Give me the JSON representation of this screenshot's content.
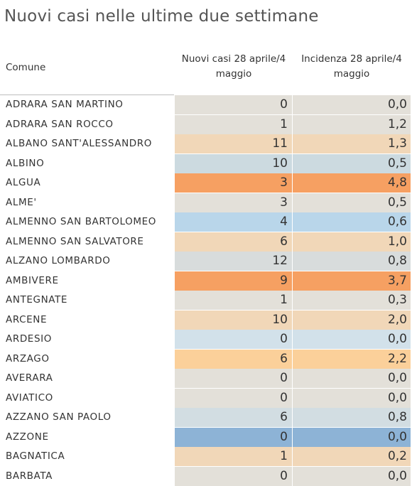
{
  "title": "Nuovi casi nelle ultime due settimane",
  "headers": {
    "comune": "Comune",
    "col1": "Nuovi casi 28 aprile/4 maggio",
    "col2": "Incidenza 28 aprile/4 maggio"
  },
  "rows": [
    {
      "comune": "ADRARA SAN MARTINO",
      "nuovi": "0",
      "incidenza": "0,0"
    },
    {
      "comune": "ADRARA SAN ROCCO",
      "nuovi": "1",
      "incidenza": "1,2"
    },
    {
      "comune": "ALBANO SANT'ALESSANDRO",
      "nuovi": "11",
      "incidenza": "1,3"
    },
    {
      "comune": "ALBINO",
      "nuovi": "10",
      "incidenza": "0,5"
    },
    {
      "comune": "ALGUA",
      "nuovi": "3",
      "incidenza": "4,8"
    },
    {
      "comune": "ALME'",
      "nuovi": "3",
      "incidenza": "0,5"
    },
    {
      "comune": "ALMENNO SAN BARTOLOMEO",
      "nuovi": "4",
      "incidenza": "0,6"
    },
    {
      "comune": "ALMENNO SAN SALVATORE",
      "nuovi": "6",
      "incidenza": "1,0"
    },
    {
      "comune": "ALZANO LOMBARDO",
      "nuovi": "12",
      "incidenza": "0,8"
    },
    {
      "comune": "AMBIVERE",
      "nuovi": "9",
      "incidenza": "3,7"
    },
    {
      "comune": "ANTEGNATE",
      "nuovi": "1",
      "incidenza": "0,3"
    },
    {
      "comune": "ARCENE",
      "nuovi": "10",
      "incidenza": "2,0"
    },
    {
      "comune": "ARDESIO",
      "nuovi": "0",
      "incidenza": "0,0"
    },
    {
      "comune": "ARZAGO",
      "nuovi": "6",
      "incidenza": "2,2"
    },
    {
      "comune": "AVERARA",
      "nuovi": "0",
      "incidenza": "0,0"
    },
    {
      "comune": "AVIATICO",
      "nuovi": "0",
      "incidenza": "0,0"
    },
    {
      "comune": "AZZANO SAN PAOLO",
      "nuovi": "6",
      "incidenza": "0,8"
    },
    {
      "comune": "AZZONE",
      "nuovi": "0",
      "incidenza": "0,0"
    },
    {
      "comune": "BAGNATICA",
      "nuovi": "1",
      "incidenza": "0,2"
    },
    {
      "comune": "BARBATA",
      "nuovi": "0",
      "incidenza": "0,0"
    }
  ],
  "row_colors": [
    "#e3e0d9",
    "#e3e0d9",
    "#f1d7b8",
    "#ccdae0",
    "#f6a062",
    "#e3e0d9",
    "#b9d6ea",
    "#f1d7b8",
    "#d8dcdc",
    "#f6a062",
    "#e3e0d9",
    "#f1d7b8",
    "#d2e1ea",
    "#fbd09a",
    "#e3e0d9",
    "#e3e0d9",
    "#d2dde2",
    "#8db3d6",
    "#f1d7b8",
    "#e3e0d9"
  ],
  "chart_data": {
    "type": "table",
    "title": "Nuovi casi nelle ultime due settimane",
    "columns": [
      "Comune",
      "Nuovi casi 28 aprile/4 maggio",
      "Incidenza 28 aprile/4 maggio"
    ],
    "categories": [
      "ADRARA SAN MARTINO",
      "ADRARA SAN ROCCO",
      "ALBANO SANT'ALESSANDRO",
      "ALBINO",
      "ALGUA",
      "ALME'",
      "ALMENNO SAN BARTOLOMEO",
      "ALMENNO SAN SALVATORE",
      "ALZANO LOMBARDO",
      "AMBIVERE",
      "ANTEGNATE",
      "ARCENE",
      "ARDESIO",
      "ARZAGO",
      "AVERARA",
      "AVIATICO",
      "AZZANO SAN PAOLO",
      "AZZONE",
      "BAGNATICA",
      "BARBATA"
    ],
    "series": [
      {
        "name": "Nuovi casi 28 aprile/4 maggio",
        "values": [
          0,
          1,
          11,
          10,
          3,
          3,
          4,
          6,
          12,
          9,
          1,
          10,
          0,
          6,
          0,
          0,
          6,
          0,
          1,
          0
        ]
      },
      {
        "name": "Incidenza 28 aprile/4 maggio",
        "values": [
          0.0,
          1.2,
          1.3,
          0.5,
          4.8,
          0.5,
          0.6,
          1.0,
          0.8,
          3.7,
          0.3,
          2.0,
          0.0,
          2.2,
          0.0,
          0.0,
          0.8,
          0.0,
          0.2,
          0.0
        ]
      }
    ]
  }
}
